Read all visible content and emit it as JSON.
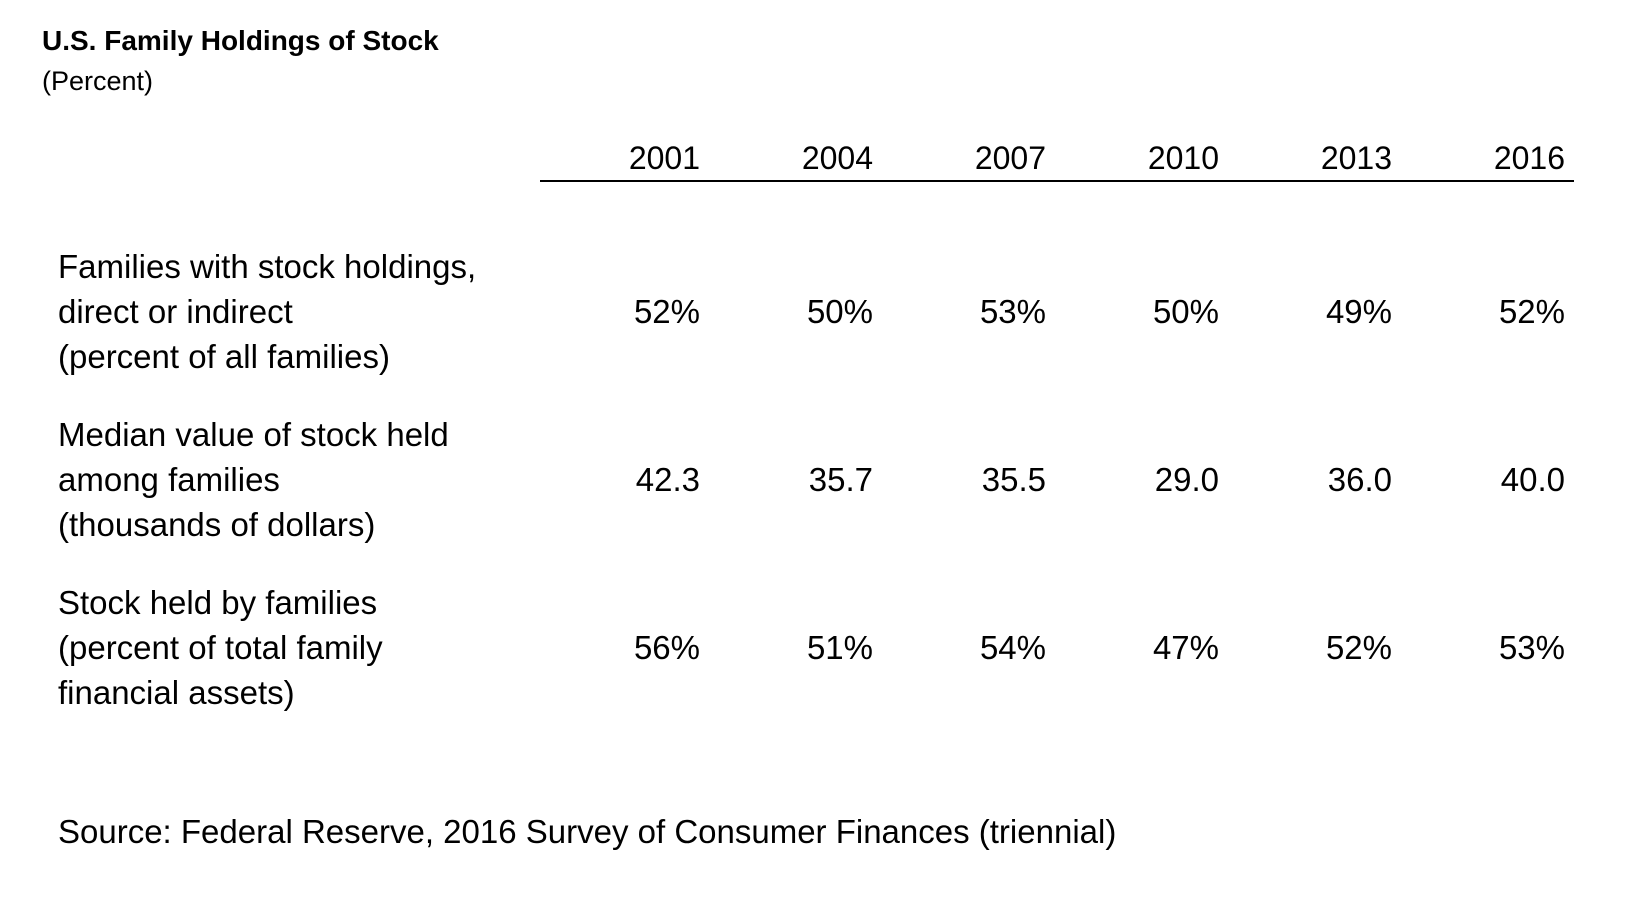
{
  "chart_data": {
    "type": "table",
    "title": "U.S. Family Holdings of Stock",
    "subtitle": "(Percent)",
    "columns": [
      "2001",
      "2004",
      "2007",
      "2010",
      "2013",
      "2016"
    ],
    "rows": [
      {
        "label_lines": [
          "Families with stock holdings,",
          "direct or indirect",
          "(percent of all families)"
        ],
        "cells": [
          "52%",
          "50%",
          "53%",
          "50%",
          "49%",
          "52%"
        ],
        "values": [
          52,
          50,
          53,
          50,
          49,
          52
        ]
      },
      {
        "label_lines": [
          "Median value of stock held",
          "among families",
          "(thousands of dollars)"
        ],
        "cells": [
          "42.3",
          "35.7",
          "35.5",
          "29.0",
          "36.0",
          "40.0"
        ],
        "values": [
          42.3,
          35.7,
          35.5,
          29.0,
          36.0,
          40.0
        ]
      },
      {
        "label_lines": [
          "Stock held by families",
          "(percent of total family",
          "financial assets)"
        ],
        "cells": [
          "56%",
          "51%",
          "54%",
          "47%",
          "52%",
          "53%"
        ],
        "values": [
          56,
          51,
          54,
          47,
          52,
          53
        ]
      }
    ],
    "source": "Source: Federal Reserve, 2016 Survey of Consumer Finances (triennial)"
  }
}
